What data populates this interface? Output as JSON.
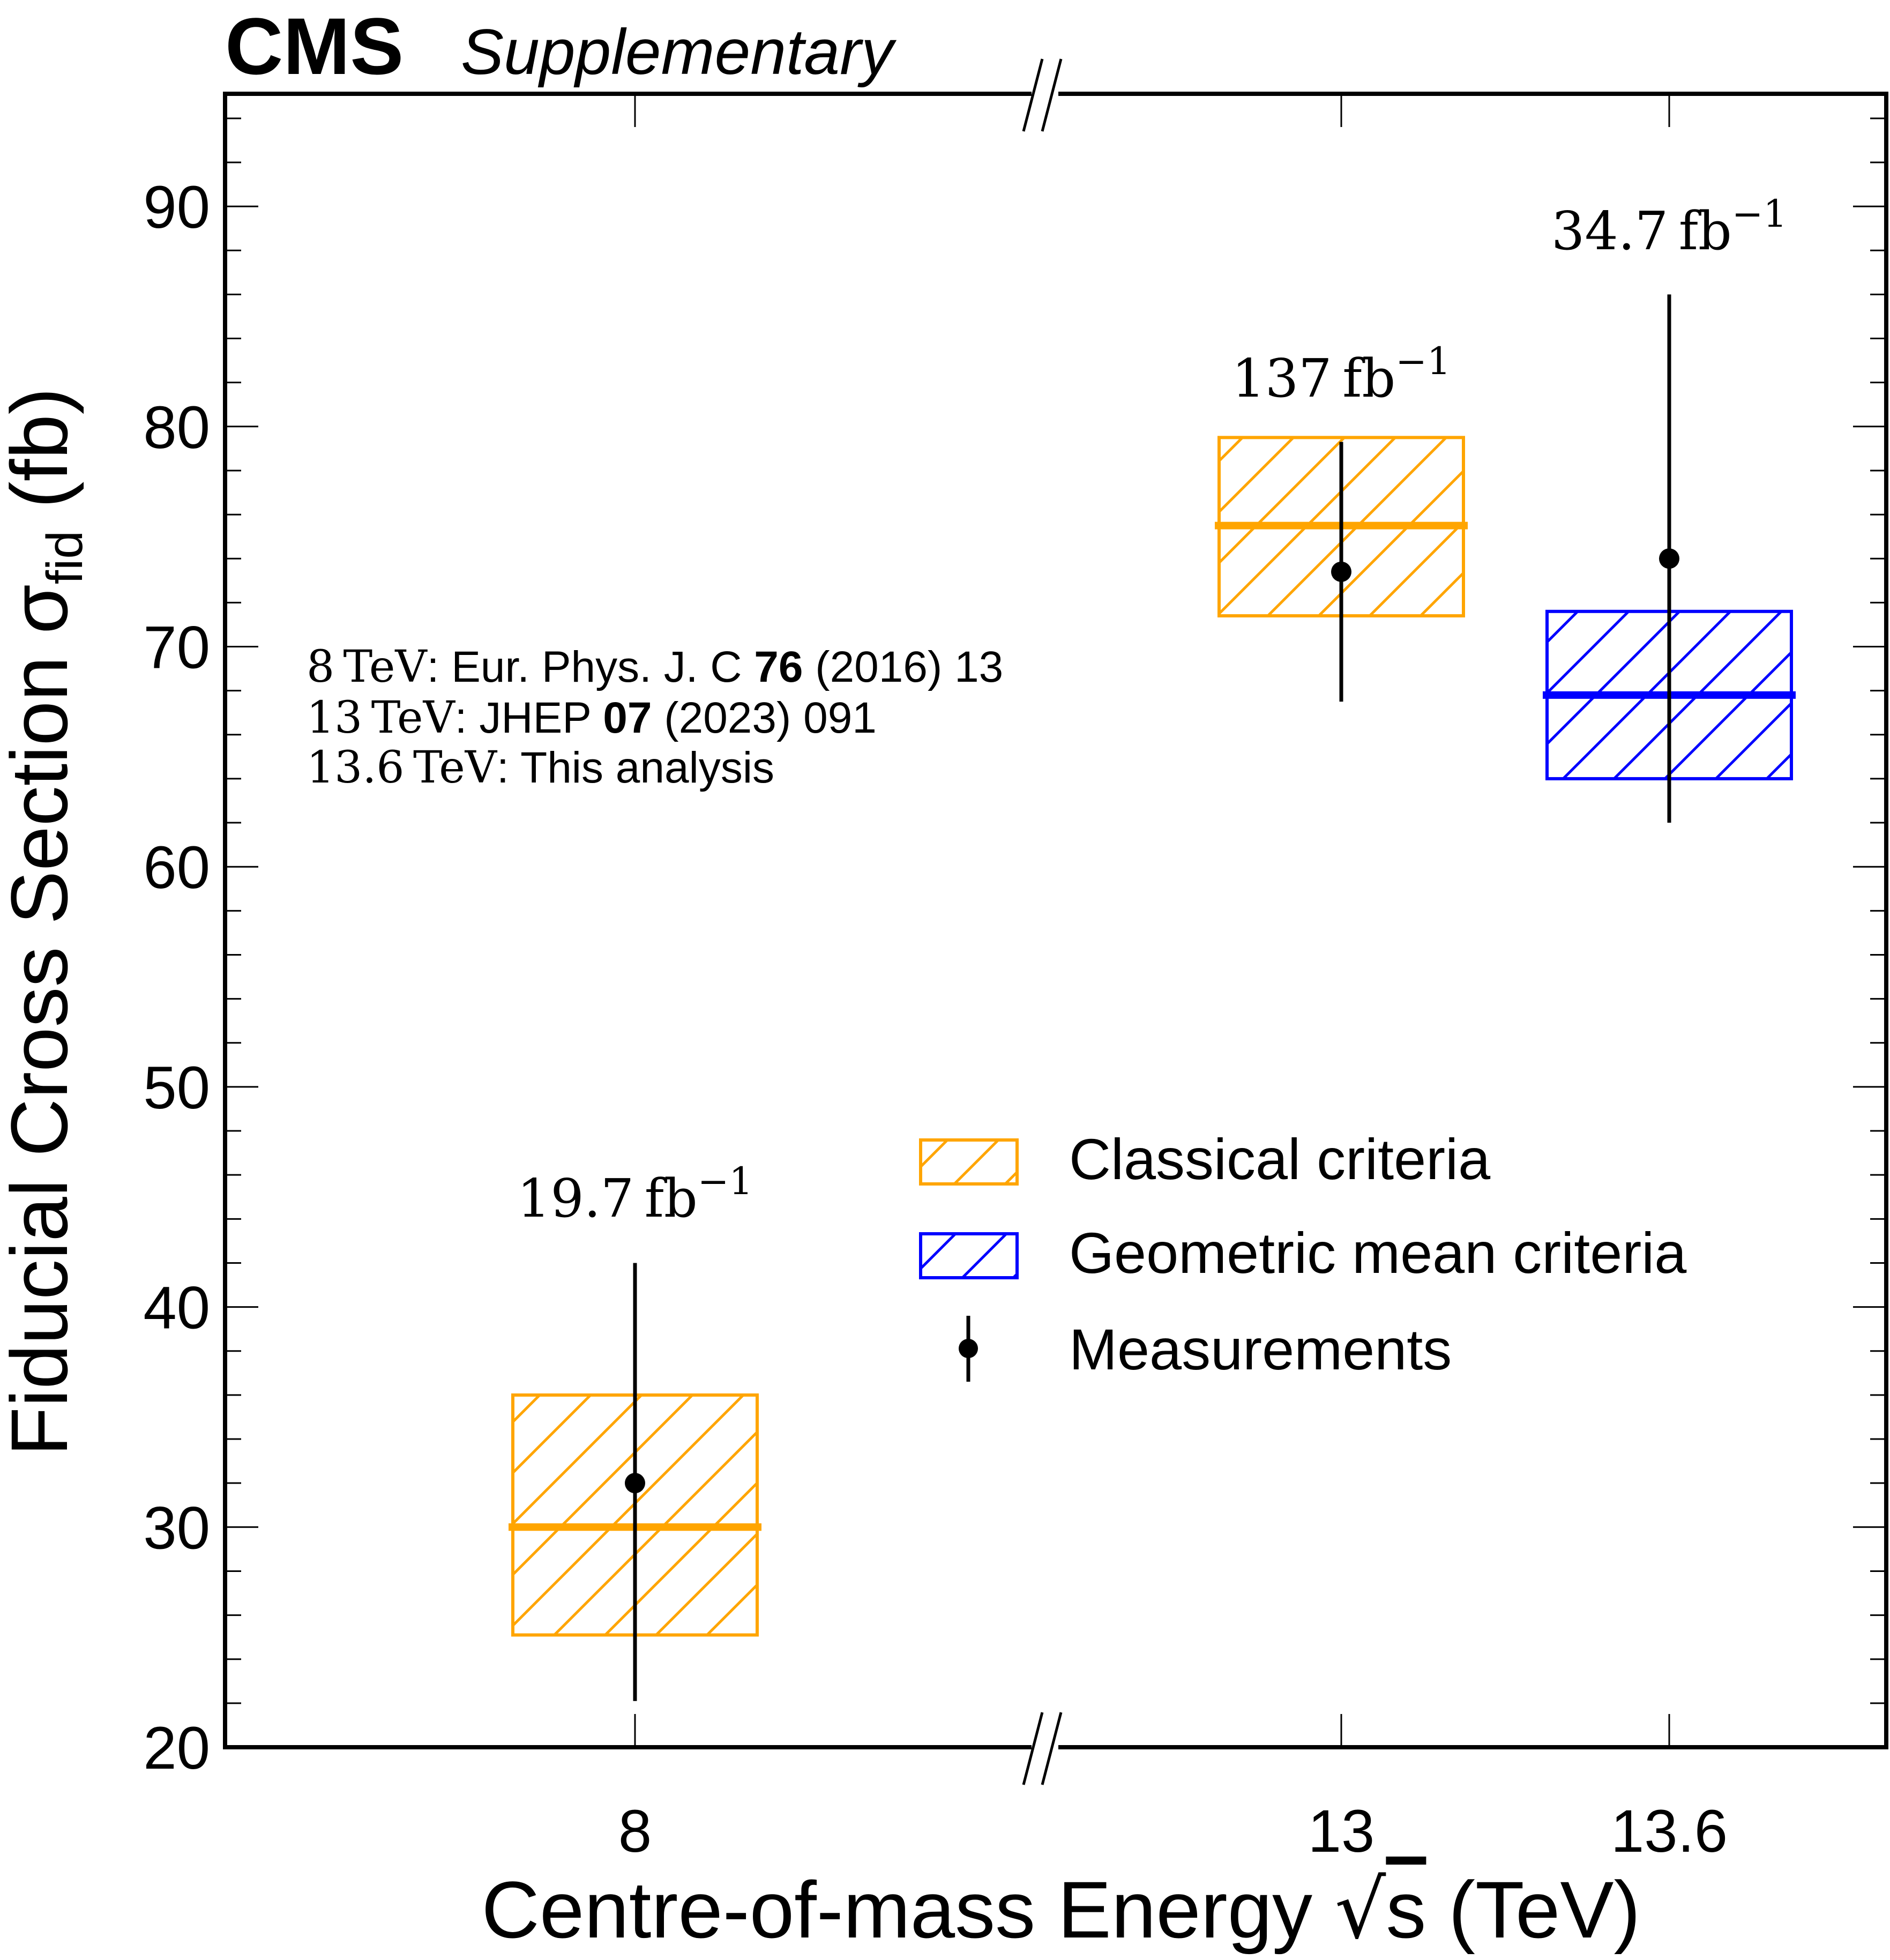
{
  "header": {
    "experiment": "CMS",
    "label": "Supplementary"
  },
  "chart_data": {
    "type": "scatter",
    "title": "",
    "xlabel": "Centre-of-mass Energy √s (TeV)",
    "xlabel_parts": {
      "pre": "Centre-of-mass Energy ",
      "sym": "s",
      "post": " (TeV)"
    },
    "ylabel": "Fiducial Cross Section σfid (fb)",
    "ylabel_parts": {
      "main": "Fiducial Cross Section σ",
      "sub": "fid",
      "post": " (fb)"
    },
    "x_categories": [
      "8",
      "13",
      "13.6"
    ],
    "x_axis_broken_between": [
      "8",
      "13"
    ],
    "ylim": [
      20,
      95
    ],
    "y_major_ticks": [
      20,
      30,
      40,
      50,
      60,
      70,
      80,
      90
    ],
    "y_minor_step": 2,
    "grid": false,
    "luminosity_labels": [
      {
        "x": "8",
        "value": "19.7",
        "unit": "fb",
        "exp": "−1"
      },
      {
        "x": "13",
        "value": "137",
        "unit": "fb",
        "exp": "−1"
      },
      {
        "x": "13.6",
        "value": "34.7",
        "unit": "fb",
        "exp": "−1"
      }
    ],
    "series": [
      {
        "name": "Classical criteria",
        "kind": "hatched-band",
        "color": "#FFA500",
        "points": [
          {
            "x": "8",
            "central": 30.0,
            "low": 25.1,
            "high": 36.0
          },
          {
            "x": "13",
            "central": 75.5,
            "low": 71.4,
            "high": 79.5
          }
        ]
      },
      {
        "name": "Geometric mean criteria",
        "kind": "hatched-band",
        "color": "#0000FF",
        "points": [
          {
            "x": "13.6",
            "central": 67.8,
            "low": 64.0,
            "high": 71.6
          }
        ]
      },
      {
        "name": "Measurements",
        "kind": "errorbar",
        "color": "#000000",
        "points": [
          {
            "x": "8",
            "y": 32.0,
            "err_low": 22.1,
            "err_high": 42.0
          },
          {
            "x": "13",
            "y": 73.4,
            "err_low": 67.5,
            "err_high": 79.3
          },
          {
            "x": "13.6",
            "y": 74.0,
            "err_low": 62.0,
            "err_high": 86.0
          }
        ]
      }
    ],
    "legend": {
      "placement": "center-right",
      "entries": [
        "Classical criteria",
        "Geometric mean criteria",
        "Measurements"
      ]
    },
    "annotations": [
      {
        "energy": "8",
        "unit": "TeV",
        "text_pre": ": Eur. Phys. J. C ",
        "bold": "76",
        "text_post": " (2016) 13"
      },
      {
        "energy": "13",
        "unit": "TeV",
        "text_pre": ": JHEP ",
        "bold": "07",
        "text_post": " (2023) 091"
      },
      {
        "energy": "13.6",
        "unit": "TeV",
        "text_pre": ": This analysis",
        "bold": "",
        "text_post": ""
      }
    ]
  }
}
